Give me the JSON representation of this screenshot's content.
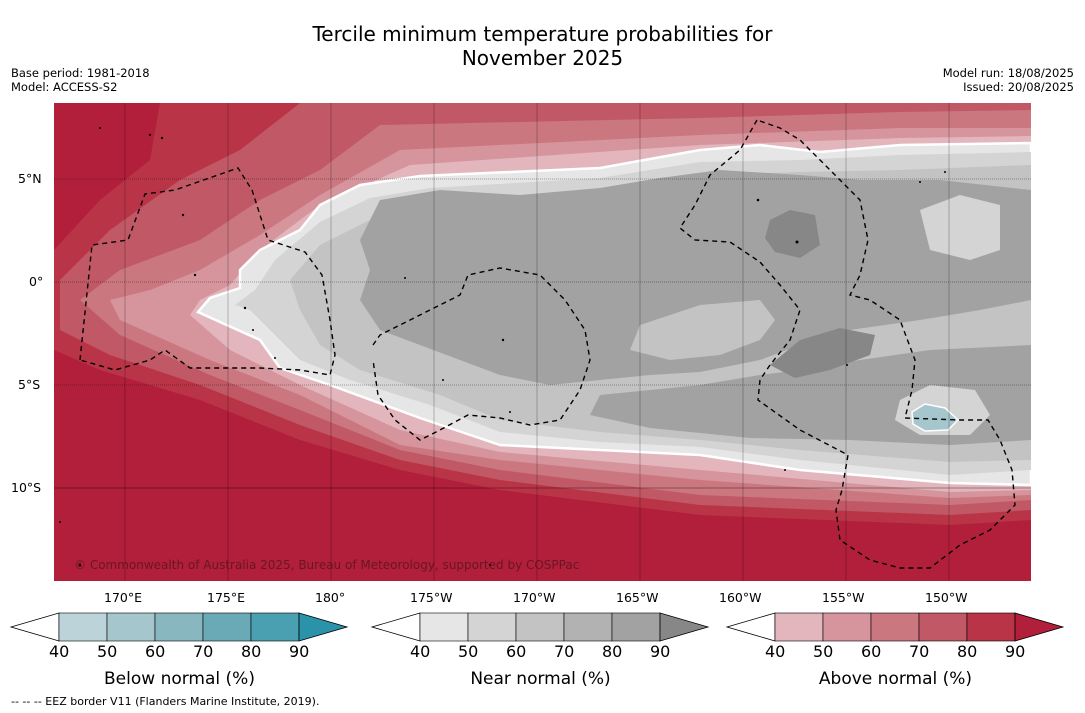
{
  "title_line1": "Tercile minimum temperature probabilities for",
  "title_line2": "November 2025",
  "left_meta": {
    "base_period": "Base period: 1981-2018",
    "model": "Model: ACCESS-S2"
  },
  "right_meta": {
    "model_run": "Model run: 18/08/2025",
    "issued": "Issued: 20/08/2025"
  },
  "lat_labels": [
    "5°N",
    "0°",
    "5°S",
    "10°S"
  ],
  "lon_labels": [
    "170°E",
    "175°E",
    "180°",
    "175°W",
    "170°W",
    "165°W",
    "160°W",
    "155°W",
    "150°W"
  ],
  "copyright": "© Commonwealth of Australia 2025, Bureau of Meteorology, supported by COSPPac",
  "colorbars": [
    {
      "label": "Below normal (%)",
      "ticks": [
        "40",
        "50",
        "60",
        "70",
        "80",
        "90"
      ],
      "colors": [
        "#ffffff",
        "#bdd3da",
        "#a5c6cc",
        "#88b7bf",
        "#6aaab7",
        "#4a9fb1",
        "#2a93aa"
      ]
    },
    {
      "label": "Near normal (%)",
      "ticks": [
        "40",
        "50",
        "60",
        "70",
        "80",
        "90"
      ],
      "colors": [
        "#ffffff",
        "#e6e6e6",
        "#d4d4d4",
        "#c3c3c3",
        "#b2b2b2",
        "#a2a2a2",
        "#878787"
      ]
    },
    {
      "label": "Above normal (%)",
      "ticks": [
        "40",
        "50",
        "60",
        "70",
        "80",
        "90"
      ],
      "colors": [
        "#ffffff",
        "#e2b6bc",
        "#d6949c",
        "#cb7780",
        "#c15865",
        "#b93447",
        "#b11f3a"
      ]
    }
  ],
  "footer": "--  --  -- EEZ border V11 (Flanders Marine Institute, 2019).",
  "map_colors": {
    "above_90": "#b11f3a",
    "above_80": "#b93447",
    "above_70": "#c15865",
    "above_60": "#cb7780",
    "above_50": "#d6949c",
    "above_40": "#e2b6bc",
    "near_50": "#e6e6e6",
    "near_60": "#d4d4d4",
    "near_70": "#c3c3c3",
    "near_80": "#a2a2a2",
    "near_90": "#878787",
    "below_50": "#a5c6cc"
  }
}
